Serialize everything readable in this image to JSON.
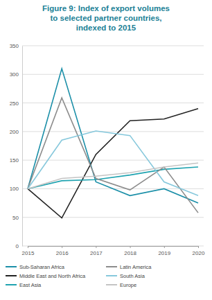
{
  "chart_data": {
    "type": "line",
    "title": "Figure 9: Index of export volumes\nto selected partner countries,\nindexed to 2015",
    "categories": [
      "2015",
      "2016",
      "2017",
      "2018",
      "2019",
      "2020"
    ],
    "series": [
      {
        "name": "Sub-Saharan Africa",
        "color": "#1b8fa8",
        "values": [
          100,
          310,
          112,
          88,
          100,
          75
        ]
      },
      {
        "name": "Middle East and North Africa",
        "color": "#222222",
        "values": [
          100,
          49,
          160,
          219,
          222,
          240
        ]
      },
      {
        "name": "East Asia",
        "color": "#1fa3b0",
        "values": [
          100,
          114,
          116,
          124,
          134,
          138
        ]
      },
      {
        "name": "Latin America",
        "color": "#8c8c8c",
        "values": [
          100,
          259,
          118,
          98,
          138,
          58
        ]
      },
      {
        "name": "South Asia",
        "color": "#86c8dc",
        "values": [
          100,
          185,
          201,
          193,
          112,
          88
        ]
      },
      {
        "name": "Europe",
        "color": "#c4c4c4",
        "values": [
          100,
          118,
          122,
          128,
          138,
          145
        ]
      }
    ],
    "ylim": [
      0,
      350
    ],
    "yticks": [
      0,
      50,
      100,
      150,
      200,
      250,
      300,
      350
    ],
    "grid": true,
    "legend": "bottom"
  }
}
